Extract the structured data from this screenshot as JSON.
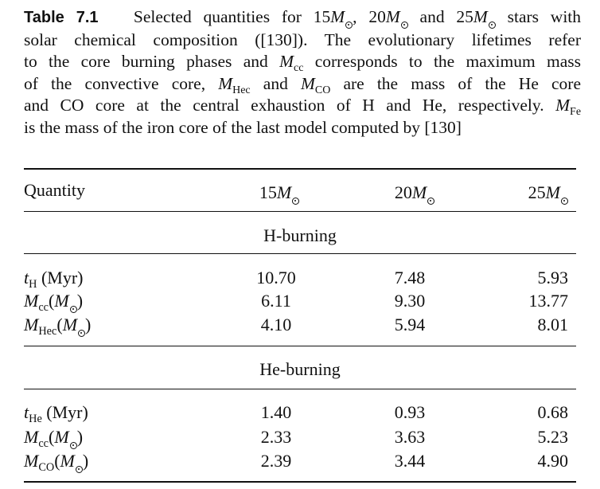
{
  "caption": {
    "label": "Table 7.1",
    "line1_a": "Selected quantities for 15",
    "line1_b": ", 20",
    "line1_c": " and 25",
    "line1_d": " stars with",
    "mass_symbol": "M",
    "line2": "solar chemical composition ([130]). The evolutionary lifetimes refer",
    "line3_a": "to the core burning phases and",
    "line3_sub": "cc",
    "line3_b": "corresponds to the maximum mass",
    "line4_a": "of the convective core,",
    "line4_sub1": "Hec",
    "line4_b": "and",
    "line4_sub2": "CO",
    "line4_c": "are the mass of the He core",
    "line5_a": "and CO core at the central exhaustion of H and He, respectively.",
    "line5_sub": "Fe",
    "line6": "is the mass of the iron core of the last model computed by [130]"
  },
  "table": {
    "header": {
      "quantity": "Quantity",
      "c15": "15",
      "c20": "20",
      "c25": "25",
      "mass_symbol": "M"
    },
    "sections": [
      {
        "title": "H-burning",
        "rows": [
          {
            "sym": "t",
            "sub": "H",
            "unit": " (Myr)",
            "v15": "10.70",
            "v20": "7.48",
            "v25": "5.93"
          },
          {
            "sym": "M",
            "sub": "cc",
            "unit": "",
            "v15": "6.11",
            "v20": "9.30",
            "v25": "13.77"
          },
          {
            "sym": "M",
            "sub": "Hec",
            "unit": "",
            "v15": "4.10",
            "v20": "5.94",
            "v25": "8.01"
          }
        ]
      },
      {
        "title": "He-burning",
        "rows": [
          {
            "sym": "t",
            "sub": "He",
            "unit": " (Myr)",
            "v15": "1.40",
            "v20": "0.93",
            "v25": "0.68"
          },
          {
            "sym": "M",
            "sub": "cc",
            "unit": "",
            "v15": "2.33",
            "v20": "3.63",
            "v25": "5.23"
          },
          {
            "sym": "M",
            "sub": "CO",
            "unit": "",
            "v15": "2.39",
            "v20": "3.44",
            "v25": "4.90"
          }
        ]
      }
    ]
  }
}
